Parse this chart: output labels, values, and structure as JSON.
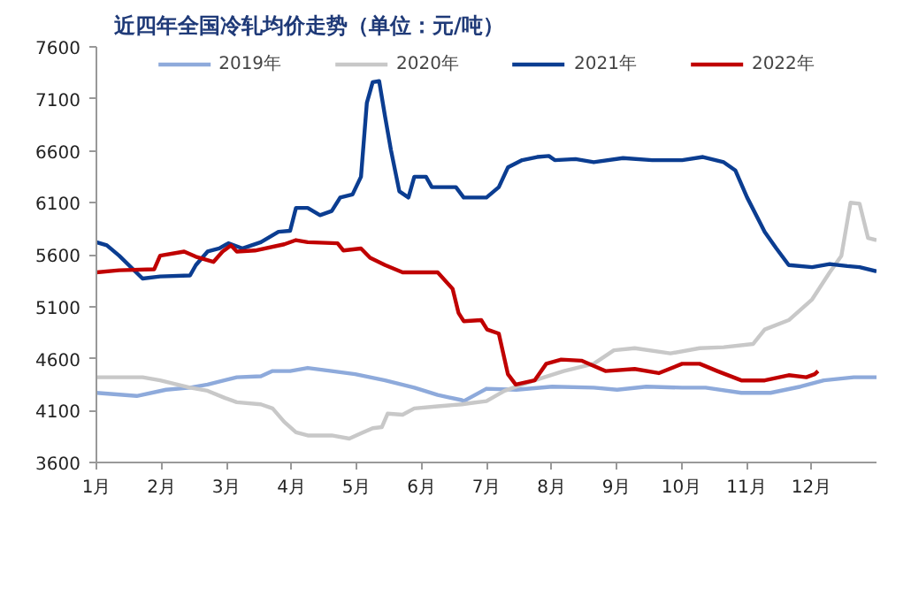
{
  "chart_data": {
    "type": "line",
    "title": "近四年全国冷轧均价走势（单位：元/吨）",
    "xlim": [
      1,
      13
    ],
    "xticks": [
      {
        "value": 1,
        "label": "1月"
      },
      {
        "value": 2,
        "label": "2月"
      },
      {
        "value": 3,
        "label": "3月"
      },
      {
        "value": 4,
        "label": "4月"
      },
      {
        "value": 5,
        "label": "5月"
      },
      {
        "value": 6,
        "label": "6月"
      },
      {
        "value": 7,
        "label": "7月"
      },
      {
        "value": 8,
        "label": "8月"
      },
      {
        "value": 9,
        "label": "9月"
      },
      {
        "value": 10,
        "label": "10月"
      },
      {
        "value": 11,
        "label": "11月"
      },
      {
        "value": 12,
        "label": "12月"
      }
    ],
    "ylim": [
      3600,
      7600
    ],
    "yticks": [
      3600,
      4100,
      4600,
      5100,
      5600,
      6100,
      6600,
      7100,
      7600
    ],
    "grid": false,
    "legend": "top",
    "marker": "none",
    "line_style": "solid",
    "series": [
      {
        "name": "2019年",
        "color": "#8eaadb",
        "x": [
          1,
          1.62,
          2.07,
          2.44,
          2.71,
          3.16,
          3.53,
          3.71,
          3.98,
          4.25,
          4.62,
          4.98,
          5.44,
          5.89,
          6.25,
          6.62,
          6.65,
          7,
          7.46,
          8.01,
          8.65,
          9.01,
          9.46,
          10.01,
          10.37,
          10.92,
          11.37,
          11.83,
          12.19,
          12.65,
          13
        ],
        "values": [
          4270,
          4240,
          4300,
          4320,
          4350,
          4420,
          4430,
          4480,
          4480,
          4510,
          4480,
          4450,
          4390,
          4320,
          4250,
          4200,
          4190,
          4310,
          4300,
          4330,
          4320,
          4300,
          4330,
          4320,
          4320,
          4270,
          4270,
          4330,
          4390,
          4420,
          4420
        ]
      },
      {
        "name": "2020年",
        "color": "#c8c8c8",
        "x": [
          1,
          1.71,
          1.98,
          2.44,
          2.71,
          2.98,
          3.16,
          3.53,
          3.71,
          3.89,
          4.07,
          4.25,
          4.62,
          4.89,
          5.07,
          5.25,
          5.39,
          5.48,
          5.71,
          5.89,
          6.25,
          6.62,
          6.74,
          7,
          7.28,
          7.74,
          8.19,
          8.65,
          8.96,
          9.28,
          9.83,
          10.28,
          10.65,
          11.1,
          11.28,
          11.65,
          12.01,
          12.28,
          12.46,
          12.6,
          12.74,
          12.87,
          13
        ],
        "values": [
          4420,
          4420,
          4390,
          4320,
          4290,
          4220,
          4180,
          4160,
          4120,
          3990,
          3890,
          3860,
          3860,
          3830,
          3880,
          3930,
          3940,
          4070,
          4060,
          4120,
          4140,
          4160,
          4170,
          4190,
          4290,
          4390,
          4480,
          4550,
          4680,
          4700,
          4650,
          4700,
          4710,
          4740,
          4880,
          4970,
          5170,
          5430,
          5590,
          6100,
          6090,
          5760,
          5740
        ]
      },
      {
        "name": "2021年",
        "color": "#0b3d91",
        "x": [
          1,
          1.16,
          1.35,
          1.71,
          1.98,
          2.44,
          2.53,
          2.71,
          2.89,
          3.03,
          3.25,
          3.53,
          3.8,
          3.98,
          4.07,
          4.25,
          4.44,
          4.62,
          4.75,
          4.94,
          5.07,
          5.16,
          5.25,
          5.35,
          5.44,
          5.53,
          5.66,
          5.8,
          5.89,
          6.07,
          6.16,
          6.53,
          6.65,
          7,
          7.19,
          7.33,
          7.55,
          7.78,
          7.96,
          8.05,
          8.37,
          8.65,
          9.1,
          9.55,
          10.01,
          10.33,
          10.65,
          10.83,
          11.01,
          11.28,
          11.46,
          11.65,
          12.01,
          12.28,
          12.55,
          12.74,
          13
        ],
        "values": [
          5720,
          5690,
          5590,
          5370,
          5390,
          5400,
          5500,
          5630,
          5660,
          5710,
          5660,
          5720,
          5820,
          5830,
          6050,
          6050,
          5980,
          6020,
          6150,
          6180,
          6350,
          7060,
          7260,
          7270,
          6930,
          6610,
          6210,
          6150,
          6350,
          6350,
          6250,
          6250,
          6150,
          6150,
          6250,
          6440,
          6510,
          6540,
          6550,
          6510,
          6520,
          6490,
          6530,
          6510,
          6510,
          6540,
          6490,
          6410,
          6150,
          5820,
          5660,
          5500,
          5480,
          5510,
          5490,
          5480,
          5440
        ]
      },
      {
        "name": "2022年",
        "color": "#c00000",
        "x": [
          1,
          1.35,
          1.89,
          1.98,
          2.35,
          2.53,
          2.8,
          2.94,
          3.07,
          3.16,
          3.44,
          3.89,
          4.07,
          4.25,
          4.71,
          4.8,
          5.07,
          5.21,
          5.44,
          5.71,
          6.25,
          6.48,
          6.57,
          6.65,
          6.92,
          7.01,
          7.19,
          7.33,
          7.45,
          7.74,
          7.92,
          8.15,
          8.46,
          8.83,
          9.28,
          9.65,
          10.01,
          10.28,
          10.55,
          10.92,
          11.28,
          11.65,
          11.92,
          12.05,
          12.1
        ],
        "values": [
          5430,
          5450,
          5460,
          5590,
          5630,
          5580,
          5530,
          5630,
          5690,
          5630,
          5640,
          5700,
          5740,
          5720,
          5710,
          5640,
          5660,
          5570,
          5500,
          5430,
          5430,
          5270,
          5040,
          4960,
          4970,
          4880,
          4840,
          4450,
          4350,
          4390,
          4550,
          4590,
          4580,
          4480,
          4500,
          4460,
          4550,
          4550,
          4480,
          4390,
          4390,
          4440,
          4420,
          4450,
          4480
        ]
      }
    ]
  }
}
